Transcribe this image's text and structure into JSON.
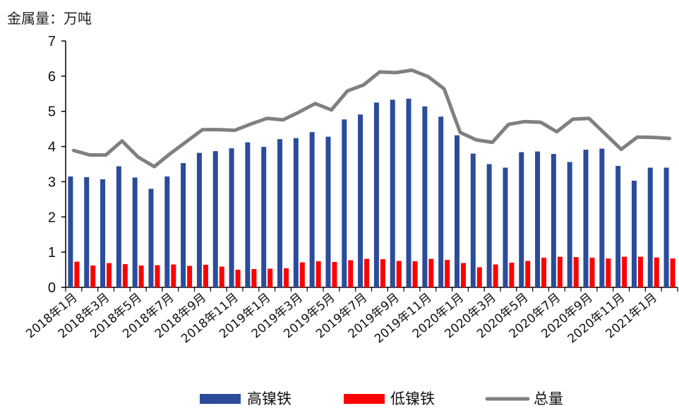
{
  "chart_data": {
    "type": "bar",
    "unit_label": "金属量：万吨",
    "ylim": [
      0,
      7
    ],
    "yticks": [
      "0",
      "1",
      "2",
      "3",
      "4",
      "5",
      "6",
      "7"
    ],
    "categories": [
      "2018年1月",
      "2018年2月",
      "2018年3月",
      "2018年4月",
      "2018年5月",
      "2018年6月",
      "2018年7月",
      "2018年8月",
      "2018年9月",
      "2018年10月",
      "2018年11月",
      "2018年12月",
      "2019年1月",
      "2019年2月",
      "2019年3月",
      "2019年4月",
      "2019年5月",
      "2019年6月",
      "2019年7月",
      "2019年8月",
      "2019年9月",
      "2019年10月",
      "2019年11月",
      "2019年12月",
      "2020年1月",
      "2020年2月",
      "2020年3月",
      "2020年4月",
      "2020年5月",
      "2020年6月",
      "2020年7月",
      "2020年8月",
      "2020年9月",
      "2020年10月",
      "2020年11月",
      "2020年12月",
      "2021年1月",
      "2021年2月"
    ],
    "xtick_labels": [
      "2018年1月",
      "2018年3月",
      "2018年5月",
      "2018年7月",
      "2018年9月",
      "2018年11月",
      "2019年1月",
      "2019年3月",
      "2019年5月",
      "2019年7月",
      "2019年9月",
      "2019年11月",
      "2020年1月",
      "2020年3月",
      "2020年5月",
      "2020年7月",
      "2020年9月",
      "2020年11月",
      "2021年1月"
    ],
    "series": [
      {
        "name": "高镍铁",
        "kind": "bar",
        "color": "#2B4C9B",
        "values": [
          3.15,
          3.13,
          3.07,
          3.44,
          3.12,
          2.8,
          3.15,
          3.53,
          3.82,
          3.87,
          3.95,
          4.12,
          3.99,
          4.21,
          4.24,
          4.41,
          4.28,
          4.77,
          4.91,
          5.25,
          5.33,
          5.36,
          5.14,
          4.85,
          4.32,
          3.8,
          3.5,
          3.4,
          3.84,
          3.86,
          3.79,
          3.56,
          3.91,
          3.94,
          3.45,
          3.03,
          3.4,
          3.4
        ]
      },
      {
        "name": "低镍铁",
        "kind": "bar",
        "color": "#FF0000",
        "values": [
          0.73,
          0.62,
          0.69,
          0.66,
          0.62,
          0.63,
          0.65,
          0.61,
          0.64,
          0.59,
          0.5,
          0.52,
          0.53,
          0.54,
          0.71,
          0.74,
          0.72,
          0.77,
          0.81,
          0.8,
          0.75,
          0.74,
          0.81,
          0.78,
          0.69,
          0.57,
          0.65,
          0.7,
          0.75,
          0.84,
          0.87,
          0.86,
          0.84,
          0.82,
          0.87,
          0.87,
          0.85,
          0.82
        ]
      },
      {
        "name": "总量",
        "kind": "line",
        "color": "#808080",
        "values": [
          3.89,
          3.76,
          3.76,
          4.16,
          3.7,
          3.43,
          3.8,
          4.14,
          4.48,
          4.48,
          4.46,
          4.64,
          4.8,
          4.76,
          4.98,
          5.22,
          5.04,
          5.58,
          5.75,
          6.12,
          6.1,
          6.17,
          5.99,
          5.64,
          4.4,
          4.19,
          4.12,
          4.63,
          4.71,
          4.69,
          4.42,
          4.78,
          4.8,
          4.36,
          3.92,
          4.27,
          4.26,
          4.23
        ]
      }
    ],
    "grid": false,
    "legend_position": "bottom"
  }
}
